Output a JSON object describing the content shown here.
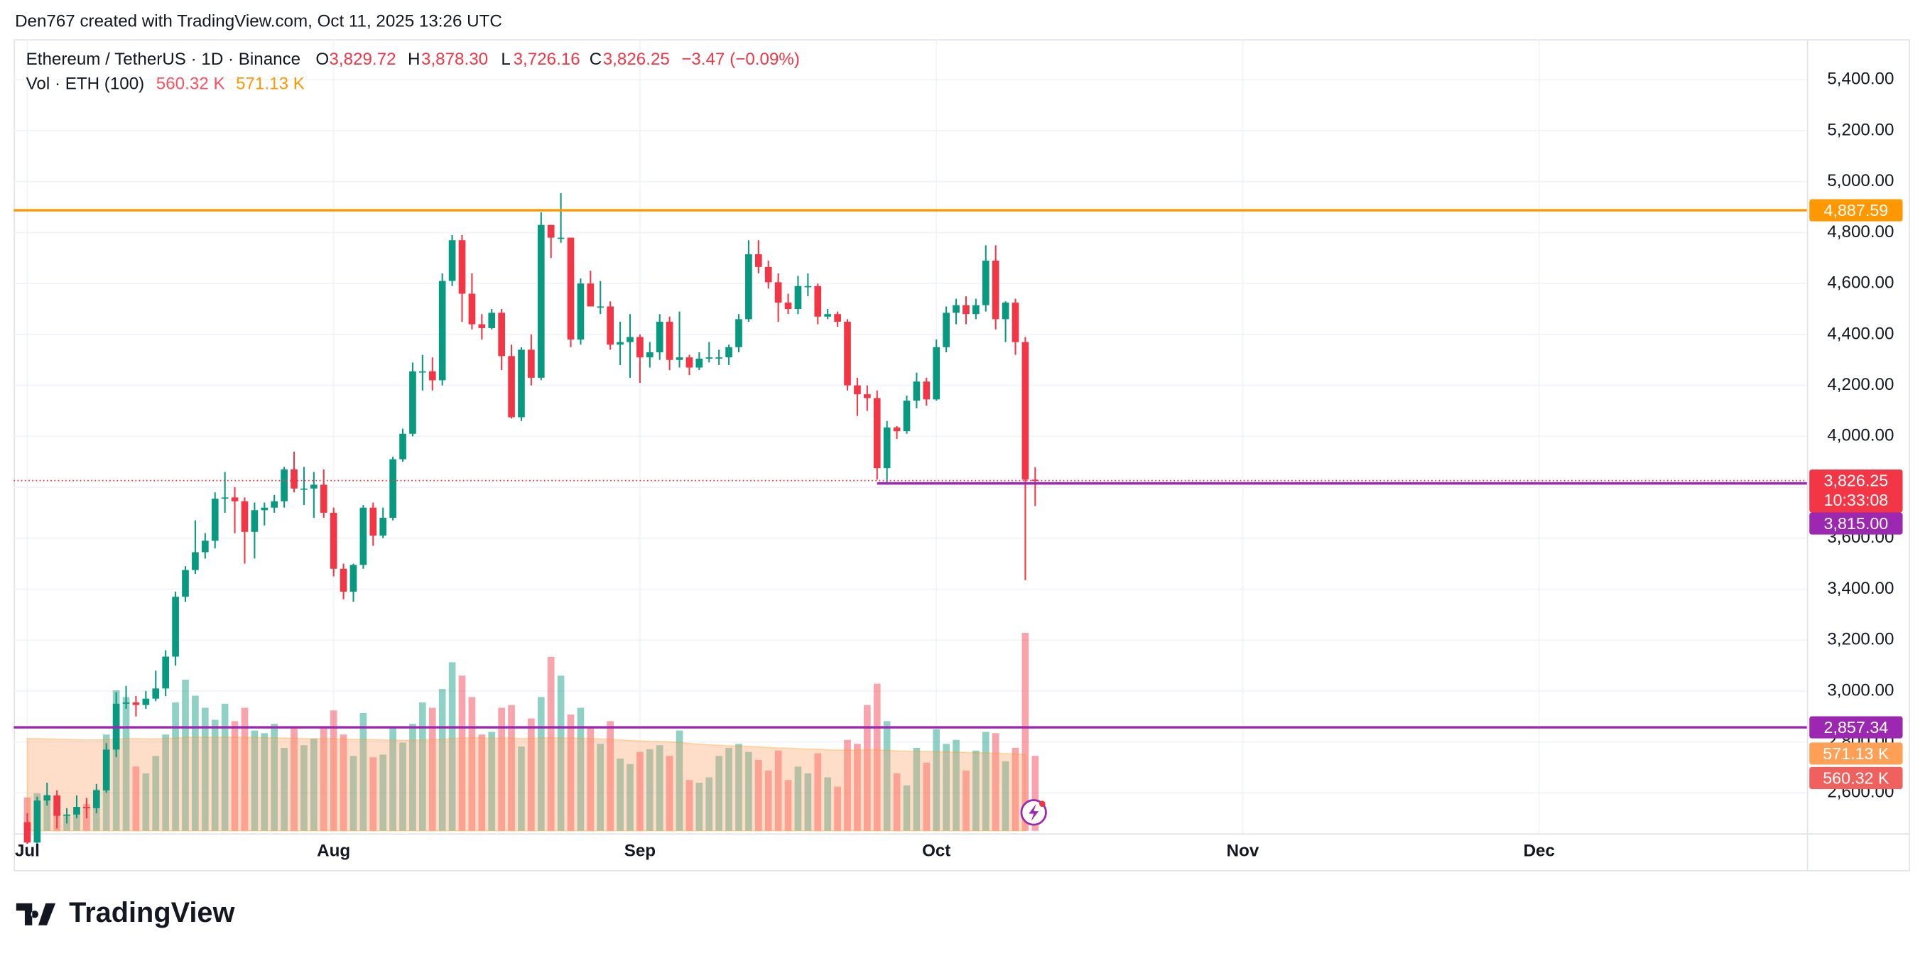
{
  "attribution": "Den767 created with TradingView.com, Oct 11, 2025 13:26 UTC",
  "brand": "TradingView",
  "chart_data": {
    "type": "candlestick",
    "legend": {
      "symbol": "Ethereum / TetherUS · 1D · Binance",
      "open_key": "O",
      "open": "3,829.72",
      "high_key": "H",
      "high": "3,878.30",
      "low_key": "L",
      "low": "3,726.16",
      "close_key": "C",
      "close": "3,826.25",
      "change": "−3.47 (−0.09%)",
      "volume_title": "Vol · ETH (100)",
      "volume_last": "560.32 K",
      "volume_ma_last": "571.13 K"
    },
    "up_color": "#089981",
    "down_color": "#f23645",
    "x": [
      0,
      1,
      2,
      3,
      4,
      5,
      6,
      7,
      8,
      9,
      10,
      11,
      12,
      13,
      14,
      15,
      16,
      17,
      18,
      19,
      20,
      21,
      22,
      23,
      24,
      25,
      26,
      27,
      28,
      29,
      30,
      31,
      32,
      33,
      34,
      35,
      36,
      37,
      38,
      39,
      40,
      41,
      42,
      43,
      44,
      45,
      46,
      47,
      48,
      49,
      50,
      51,
      52,
      53,
      54,
      55,
      56,
      57,
      58,
      59,
      60,
      61,
      62,
      63,
      64,
      65,
      66,
      67,
      68,
      69,
      70,
      71,
      72,
      73,
      74,
      75,
      76,
      77,
      78,
      79,
      80,
      81,
      82,
      83,
      84,
      85,
      86,
      87,
      88,
      89,
      90,
      91,
      92,
      93,
      94,
      95,
      96,
      97,
      98,
      99,
      100,
      101,
      102
    ],
    "ohlc": [
      [
        2485,
        2520,
        2400,
        2405
      ],
      [
        2405,
        2585,
        2380,
        2570
      ],
      [
        2570,
        2640,
        2550,
        2590
      ],
      [
        2590,
        2610,
        2460,
        2510
      ],
      [
        2510,
        2540,
        2480,
        2515
      ],
      [
        2515,
        2590,
        2500,
        2545
      ],
      [
        2545,
        2580,
        2500,
        2540
      ],
      [
        2540,
        2635,
        2520,
        2610
      ],
      [
        2610,
        2795,
        2600,
        2770
      ],
      [
        2770,
        2995,
        2740,
        2950
      ],
      [
        2950,
        3020,
        2930,
        2955
      ],
      [
        2955,
        2980,
        2900,
        2945
      ],
      [
        2945,
        3000,
        2930,
        2970
      ],
      [
        2970,
        3080,
        2960,
        3010
      ],
      [
        3010,
        3160,
        2980,
        3135
      ],
      [
        3135,
        3390,
        3100,
        3370
      ],
      [
        3370,
        3490,
        3350,
        3475
      ],
      [
        3475,
        3670,
        3460,
        3545
      ],
      [
        3545,
        3620,
        3520,
        3590
      ],
      [
        3590,
        3780,
        3560,
        3755
      ],
      [
        3755,
        3860,
        3700,
        3760
      ],
      [
        3760,
        3800,
        3620,
        3745
      ],
      [
        3745,
        3760,
        3500,
        3625
      ],
      [
        3625,
        3740,
        3520,
        3710
      ],
      [
        3710,
        3740,
        3650,
        3720
      ],
      [
        3720,
        3770,
        3700,
        3745
      ],
      [
        3745,
        3880,
        3720,
        3870
      ],
      [
        3870,
        3940,
        3780,
        3795
      ],
      [
        3795,
        3880,
        3730,
        3795
      ],
      [
        3795,
        3860,
        3680,
        3810
      ],
      [
        3810,
        3870,
        3680,
        3700
      ],
      [
        3700,
        3720,
        3450,
        3480
      ],
      [
        3480,
        3500,
        3360,
        3390
      ],
      [
        3390,
        3500,
        3350,
        3495
      ],
      [
        3495,
        3730,
        3480,
        3720
      ],
      [
        3720,
        3740,
        3570,
        3610
      ],
      [
        3610,
        3720,
        3600,
        3680
      ],
      [
        3680,
        3920,
        3670,
        3910
      ],
      [
        3910,
        4030,
        3900,
        4010
      ],
      [
        4010,
        4290,
        4000,
        4255
      ],
      [
        4255,
        4320,
        4180,
        4255
      ],
      [
        4255,
        4310,
        4180,
        4220
      ],
      [
        4220,
        4640,
        4200,
        4610
      ],
      [
        4610,
        4790,
        4590,
        4770
      ],
      [
        4770,
        4790,
        4450,
        4560
      ],
      [
        4560,
        4640,
        4420,
        4440
      ],
      [
        4440,
        4480,
        4380,
        4425
      ],
      [
        4425,
        4500,
        4420,
        4485
      ],
      [
        4485,
        4500,
        4260,
        4315
      ],
      [
        4315,
        4360,
        4070,
        4075
      ],
      [
        4075,
        4350,
        4060,
        4340
      ],
      [
        4340,
        4400,
        4200,
        4230
      ],
      [
        4230,
        4880,
        4220,
        4830
      ],
      [
        4830,
        4830,
        4700,
        4780
      ],
      [
        4780,
        4955,
        4760,
        4780
      ],
      [
        4780,
        4780,
        4350,
        4380
      ],
      [
        4380,
        4620,
        4360,
        4600
      ],
      [
        4600,
        4650,
        4520,
        4510
      ],
      [
        4510,
        4610,
        4480,
        4510
      ],
      [
        4510,
        4530,
        4340,
        4360
      ],
      [
        4360,
        4450,
        4280,
        4370
      ],
      [
        4370,
        4480,
        4230,
        4390
      ],
      [
        4390,
        4400,
        4210,
        4310
      ],
      [
        4310,
        4370,
        4270,
        4330
      ],
      [
        4330,
        4480,
        4300,
        4450
      ],
      [
        4450,
        4470,
        4260,
        4300
      ],
      [
        4300,
        4490,
        4270,
        4310
      ],
      [
        4310,
        4320,
        4240,
        4270
      ],
      [
        4270,
        4330,
        4260,
        4305
      ],
      [
        4305,
        4370,
        4290,
        4310
      ],
      [
        4310,
        4340,
        4280,
        4310
      ],
      [
        4310,
        4360,
        4280,
        4350
      ],
      [
        4350,
        4480,
        4330,
        4460
      ],
      [
        4460,
        4770,
        4450,
        4715
      ],
      [
        4715,
        4770,
        4640,
        4665
      ],
      [
        4665,
        4690,
        4580,
        4605
      ],
      [
        4605,
        4640,
        4450,
        4525
      ],
      [
        4525,
        4560,
        4480,
        4500
      ],
      [
        4500,
        4630,
        4480,
        4590
      ],
      [
        4590,
        4640,
        4550,
        4590
      ],
      [
        4590,
        4600,
        4440,
        4470
      ],
      [
        4470,
        4500,
        4460,
        4480
      ],
      [
        4480,
        4490,
        4430,
        4450
      ],
      [
        4450,
        4460,
        4180,
        4200
      ],
      [
        4200,
        4230,
        4080,
        4165
      ],
      [
        4165,
        4200,
        4100,
        4150
      ],
      [
        4150,
        4180,
        3830,
        3875
      ],
      [
        3875,
        4060,
        3810,
        4035
      ],
      [
        4035,
        4040,
        3990,
        4020
      ],
      [
        4020,
        4160,
        4010,
        4140
      ],
      [
        4140,
        4250,
        4110,
        4215
      ],
      [
        4215,
        4230,
        4120,
        4145
      ],
      [
        4145,
        4380,
        4140,
        4350
      ],
      [
        4350,
        4510,
        4330,
        4485
      ],
      [
        4485,
        4540,
        4440,
        4515
      ],
      [
        4515,
        4550,
        4440,
        4480
      ],
      [
        4480,
        4540,
        4460,
        4515
      ],
      [
        4515,
        4750,
        4490,
        4690
      ],
      [
        4690,
        4750,
        4420,
        4460
      ],
      [
        4460,
        4530,
        4370,
        4525
      ],
      [
        4525,
        4540,
        4320,
        4370
      ],
      [
        4370,
        4390,
        3435,
        3830
      ],
      [
        3829.72,
        3878.3,
        3726.16,
        3826.25
      ]
    ],
    "volume": {
      "up_color": "rgba(8,153,129,0.45)",
      "down_color": "rgba(242,54,69,0.45)",
      "ma_color": "rgba(255,152,0,0.3)",
      "values": [
        250,
        280,
        270,
        180,
        120,
        150,
        200,
        310,
        720,
        1050,
        1000,
        480,
        430,
        560,
        720,
        960,
        1130,
        1010,
        920,
        830,
        950,
        820,
        920,
        750,
        730,
        800,
        620,
        770,
        640,
        690,
        780,
        900,
        720,
        560,
        880,
        550,
        570,
        770,
        660,
        800,
        960,
        920,
        1060,
        1260,
        1160,
        1000,
        720,
        740,
        920,
        940,
        630,
        840,
        1000,
        1300,
        1160,
        870,
        920,
        780,
        650,
        820,
        540,
        500,
        590,
        610,
        640,
        560,
        750,
        380,
        360,
        400,
        560,
        620,
        650,
        590,
        530,
        450,
        600,
        380,
        480,
        430,
        580,
        400,
        330,
        680,
        650,
        940,
        1100,
        820,
        430,
        340,
        620,
        510,
        760,
        650,
        680,
        450,
        600,
        740,
        730,
        520,
        620,
        1480,
        560.32
      ],
      "ma": [
        690,
        690,
        688,
        686,
        684,
        682,
        680,
        680,
        682,
        686,
        690,
        690,
        688,
        688,
        690,
        694,
        698,
        700,
        700,
        700,
        700,
        700,
        698,
        698,
        696,
        696,
        694,
        692,
        690,
        688,
        688,
        688,
        686,
        684,
        684,
        682,
        680,
        678,
        678,
        678,
        680,
        682,
        684,
        690,
        694,
        696,
        694,
        692,
        692,
        692,
        690,
        690,
        694,
        696,
        694,
        694,
        692,
        690,
        688,
        684,
        680,
        676,
        672,
        670,
        668,
        666,
        660,
        654,
        648,
        644,
        640,
        636,
        634,
        632,
        628,
        624,
        620,
        618,
        614,
        612,
        610,
        606,
        604,
        604,
        604,
        606,
        606,
        602,
        598,
        596,
        594,
        594,
        592,
        590,
        588,
        586,
        584,
        582,
        580,
        578,
        575,
        571.13
      ]
    },
    "xlim": [
      -1.37,
      180.1
    ],
    "xticks": [
      {
        "value": 0,
        "label": "Jul"
      },
      {
        "value": 31,
        "label": "Aug"
      },
      {
        "value": 62,
        "label": "Sep"
      },
      {
        "value": 92,
        "label": "Oct"
      },
      {
        "value": 123,
        "label": "Nov"
      },
      {
        "value": 153,
        "label": "Dec"
      }
    ],
    "ylim": [
      2451,
      5559
    ],
    "yticks": [
      {
        "value": 2600,
        "label": "2,600.00"
      },
      {
        "value": 2800,
        "label": "2,800.00"
      },
      {
        "value": 3000,
        "label": "3,000.00"
      },
      {
        "value": 3200,
        "label": "3,200.00"
      },
      {
        "value": 3400,
        "label": "3,400.00"
      },
      {
        "value": 3600,
        "label": "3,600.00"
      },
      {
        "value": 3800,
        "label": "3,800.00"
      },
      {
        "value": 4000,
        "label": "4,000.00"
      },
      {
        "value": 4200,
        "label": "4,200.00"
      },
      {
        "value": 4400,
        "label": "4,400.00"
      },
      {
        "value": 4600,
        "label": "4,600.00"
      },
      {
        "value": 4800,
        "label": "4,800.00"
      },
      {
        "value": 5000,
        "label": "5,000.00"
      },
      {
        "value": 5200,
        "label": "5,200.00"
      },
      {
        "value": 5400,
        "label": "5,400.00"
      }
    ],
    "grid": true,
    "horizontal_lines": [
      {
        "value": 4887.59,
        "label": "4,887.59",
        "color": "#ff9800"
      },
      {
        "value": 3815.0,
        "label": "3,815.00",
        "color": "#9c27b0",
        "x_start": 86
      },
      {
        "value": 2857.34,
        "label": "2,857.34",
        "color": "#9c27b0"
      }
    ],
    "last_price": {
      "value": 3826.25,
      "label": "3,826.25",
      "countdown": "10:33:08",
      "color": "#f23645"
    },
    "volume_badges": [
      {
        "label": "571.13 K",
        "color": "#ffa056"
      },
      {
        "label": "560.32 K",
        "color": "#f0605c"
      }
    ]
  }
}
